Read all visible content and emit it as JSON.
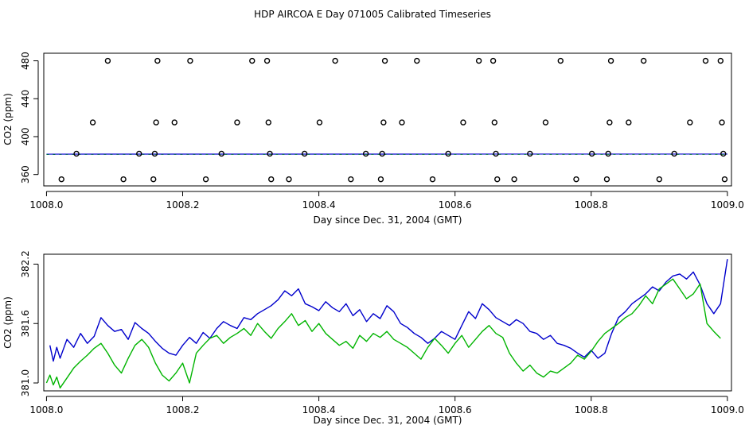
{
  "title": "HDP AIRCOA E  Day 071005  Calibrated Timeseries",
  "colors": {
    "blue": "#0000cc",
    "green": "#00b400",
    "axis": "#000000"
  },
  "chart_data": [
    {
      "type": "scatter",
      "xlabel": "Day since Dec. 31, 2004 (GMT)",
      "ylabel": "CO2 (ppm)",
      "xlim": [
        1007.996,
        1009.006
      ],
      "ylim": [
        348,
        488
      ],
      "xticks": [
        "1008.0",
        "1008.2",
        "1008.4",
        "1008.6",
        "1008.8",
        "1009.0"
      ],
      "yticks": [
        "360",
        "400",
        "440",
        "480"
      ],
      "ytick_values": [
        360,
        400,
        440,
        480
      ],
      "xtick_values": [
        1008.0,
        1008.2,
        1008.4,
        1008.6,
        1008.8,
        1009.0
      ],
      "points": [
        [
          1008.022,
          355
        ],
        [
          1008.044,
          382
        ],
        [
          1008.068,
          415
        ],
        [
          1008.09,
          480
        ],
        [
          1008.113,
          355
        ],
        [
          1008.136,
          382
        ],
        [
          1008.157,
          355
        ],
        [
          1008.159,
          382
        ],
        [
          1008.161,
          415
        ],
        [
          1008.163,
          480
        ],
        [
          1008.188,
          415
        ],
        [
          1008.211,
          480
        ],
        [
          1008.234,
          355
        ],
        [
          1008.257,
          382
        ],
        [
          1008.28,
          415
        ],
        [
          1008.302,
          480
        ],
        [
          1008.324,
          480
        ],
        [
          1008.326,
          415
        ],
        [
          1008.328,
          382
        ],
        [
          1008.33,
          355
        ],
        [
          1008.356,
          355
        ],
        [
          1008.379,
          382
        ],
        [
          1008.401,
          415
        ],
        [
          1008.424,
          480
        ],
        [
          1008.447,
          355
        ],
        [
          1008.469,
          382
        ],
        [
          1008.491,
          355
        ],
        [
          1008.493,
          382
        ],
        [
          1008.495,
          415
        ],
        [
          1008.497,
          480
        ],
        [
          1008.522,
          415
        ],
        [
          1008.544,
          480
        ],
        [
          1008.567,
          355
        ],
        [
          1008.59,
          382
        ],
        [
          1008.612,
          415
        ],
        [
          1008.635,
          480
        ],
        [
          1008.656,
          480
        ],
        [
          1008.658,
          415
        ],
        [
          1008.66,
          382
        ],
        [
          1008.662,
          355
        ],
        [
          1008.687,
          355
        ],
        [
          1008.71,
          382
        ],
        [
          1008.733,
          415
        ],
        [
          1008.755,
          480
        ],
        [
          1008.778,
          355
        ],
        [
          1008.801,
          382
        ],
        [
          1008.823,
          355
        ],
        [
          1008.825,
          382
        ],
        [
          1008.827,
          415
        ],
        [
          1008.829,
          480
        ],
        [
          1008.855,
          415
        ],
        [
          1008.877,
          480
        ],
        [
          1008.9,
          355
        ],
        [
          1008.922,
          382
        ],
        [
          1008.945,
          415
        ],
        [
          1008.968,
          480
        ],
        [
          1008.99,
          480
        ],
        [
          1008.992,
          415
        ],
        [
          1008.994,
          382
        ],
        [
          1008.996,
          355
        ]
      ],
      "line": {
        "x": [
          1008.0,
          1009.0
        ],
        "y": [
          381.5,
          381.6
        ]
      }
    },
    {
      "type": "line",
      "xlabel": "Day since Dec. 31, 2004 (GMT)",
      "ylabel": "CO2 (ppm)",
      "xlim": [
        1007.996,
        1009.006
      ],
      "ylim": [
        380.92,
        382.3
      ],
      "xticks": [
        "1008.0",
        "1008.2",
        "1008.4",
        "1008.6",
        "1008.8",
        "1009.0"
      ],
      "yticks": [
        "381.0",
        "381.6",
        "382.2"
      ],
      "ytick_values": [
        381.0,
        381.6,
        382.2
      ],
      "xtick_values": [
        1008.0,
        1008.2,
        1008.4,
        1008.6,
        1008.8,
        1009.0
      ],
      "series": [
        {
          "color": "blue",
          "x": [
            1008.005,
            1008.01,
            1008.015,
            1008.02,
            1008.03,
            1008.04,
            1008.05,
            1008.06,
            1008.07,
            1008.08,
            1008.09,
            1008.1,
            1008.11,
            1008.12,
            1008.13,
            1008.14,
            1008.15,
            1008.16,
            1008.17,
            1008.18,
            1008.19,
            1008.2,
            1008.21,
            1008.22,
            1008.23,
            1008.24,
            1008.25,
            1008.26,
            1008.27,
            1008.28,
            1008.29,
            1008.3,
            1008.31,
            1008.32,
            1008.33,
            1008.34,
            1008.35,
            1008.36,
            1008.37,
            1008.38,
            1008.39,
            1008.4,
            1008.41,
            1008.42,
            1008.43,
            1008.44,
            1008.45,
            1008.46,
            1008.47,
            1008.48,
            1008.49,
            1008.5,
            1008.51,
            1008.52,
            1008.53,
            1008.54,
            1008.55,
            1008.56,
            1008.57,
            1008.58,
            1008.59,
            1008.6,
            1008.61,
            1008.62,
            1008.63,
            1008.64,
            1008.65,
            1008.66,
            1008.67,
            1008.68,
            1008.69,
            1008.7,
            1008.71,
            1008.72,
            1008.73,
            1008.74,
            1008.75,
            1008.76,
            1008.77,
            1008.78,
            1008.79,
            1008.8,
            1008.81,
            1008.82,
            1008.83,
            1008.84,
            1008.85,
            1008.86,
            1008.87,
            1008.88,
            1008.89,
            1008.9,
            1008.91,
            1008.92,
            1008.93,
            1008.94,
            1008.95,
            1008.96,
            1008.97,
            1008.98,
            1008.99,
            1009.0
          ],
          "y": [
            381.38,
            381.22,
            381.36,
            381.25,
            381.44,
            381.36,
            381.5,
            381.4,
            381.47,
            381.66,
            381.58,
            381.52,
            381.54,
            381.44,
            381.61,
            381.55,
            381.5,
            381.42,
            381.35,
            381.3,
            381.28,
            381.38,
            381.46,
            381.4,
            381.51,
            381.45,
            381.55,
            381.62,
            381.58,
            381.55,
            381.66,
            381.64,
            381.7,
            381.74,
            381.78,
            381.84,
            381.93,
            381.88,
            381.95,
            381.8,
            381.77,
            381.73,
            381.82,
            381.76,
            381.72,
            381.8,
            381.68,
            381.74,
            381.62,
            381.7,
            381.65,
            381.78,
            381.72,
            381.6,
            381.56,
            381.5,
            381.46,
            381.4,
            381.45,
            381.52,
            381.48,
            381.44,
            381.58,
            381.72,
            381.65,
            381.8,
            381.74,
            381.66,
            381.62,
            381.58,
            381.64,
            381.6,
            381.52,
            381.5,
            381.44,
            381.48,
            381.4,
            381.38,
            381.35,
            381.3,
            381.26,
            381.33,
            381.25,
            381.3,
            381.5,
            381.66,
            381.72,
            381.8,
            381.85,
            381.9,
            381.97,
            381.93,
            382.02,
            382.08,
            382.1,
            382.05,
            382.12,
            381.99,
            381.8,
            381.7,
            381.8,
            382.25
          ]
        },
        {
          "color": "green",
          "x": [
            1008.0,
            1008.005,
            1008.01,
            1008.015,
            1008.02,
            1008.03,
            1008.04,
            1008.05,
            1008.06,
            1008.07,
            1008.08,
            1008.09,
            1008.1,
            1008.11,
            1008.12,
            1008.13,
            1008.14,
            1008.15,
            1008.16,
            1008.17,
            1008.18,
            1008.19,
            1008.2,
            1008.21,
            1008.22,
            1008.23,
            1008.24,
            1008.25,
            1008.26,
            1008.27,
            1008.28,
            1008.29,
            1008.3,
            1008.31,
            1008.32,
            1008.33,
            1008.34,
            1008.35,
            1008.36,
            1008.37,
            1008.38,
            1008.39,
            1008.4,
            1008.41,
            1008.42,
            1008.43,
            1008.44,
            1008.45,
            1008.46,
            1008.47,
            1008.48,
            1008.49,
            1008.5,
            1008.51,
            1008.52,
            1008.53,
            1008.54,
            1008.55,
            1008.56,
            1008.57,
            1008.58,
            1008.59,
            1008.6,
            1008.61,
            1008.62,
            1008.63,
            1008.64,
            1008.65,
            1008.66,
            1008.67,
            1008.68,
            1008.69,
            1008.7,
            1008.71,
            1008.72,
            1008.73,
            1008.74,
            1008.75,
            1008.76,
            1008.77,
            1008.78,
            1008.79,
            1008.8,
            1008.81,
            1008.82,
            1008.83,
            1008.84,
            1008.85,
            1008.86,
            1008.87,
            1008.88,
            1008.89,
            1008.9,
            1008.91,
            1008.92,
            1008.93,
            1008.94,
            1008.95,
            1008.96,
            1008.97,
            1008.98,
            1008.99
          ],
          "y": [
            381.0,
            381.08,
            380.98,
            381.06,
            380.95,
            381.05,
            381.15,
            381.22,
            381.28,
            381.35,
            381.4,
            381.3,
            381.18,
            381.1,
            381.25,
            381.38,
            381.44,
            381.36,
            381.2,
            381.08,
            381.02,
            381.1,
            381.2,
            381.0,
            381.3,
            381.38,
            381.45,
            381.48,
            381.4,
            381.46,
            381.5,
            381.55,
            381.48,
            381.6,
            381.52,
            381.45,
            381.55,
            381.62,
            381.7,
            381.58,
            381.63,
            381.52,
            381.6,
            381.5,
            381.44,
            381.38,
            381.42,
            381.35,
            381.48,
            381.42,
            381.5,
            381.46,
            381.52,
            381.44,
            381.4,
            381.36,
            381.3,
            381.24,
            381.36,
            381.45,
            381.38,
            381.3,
            381.4,
            381.48,
            381.36,
            381.44,
            381.52,
            381.58,
            381.5,
            381.46,
            381.3,
            381.2,
            381.12,
            381.18,
            381.1,
            381.06,
            381.12,
            381.1,
            381.15,
            381.2,
            381.28,
            381.24,
            381.32,
            381.42,
            381.5,
            381.55,
            381.6,
            381.66,
            381.7,
            381.78,
            381.88,
            381.8,
            381.95,
            382.0,
            382.05,
            381.95,
            381.85,
            381.9,
            382.0,
            381.6,
            381.52,
            381.45
          ]
        }
      ]
    }
  ]
}
